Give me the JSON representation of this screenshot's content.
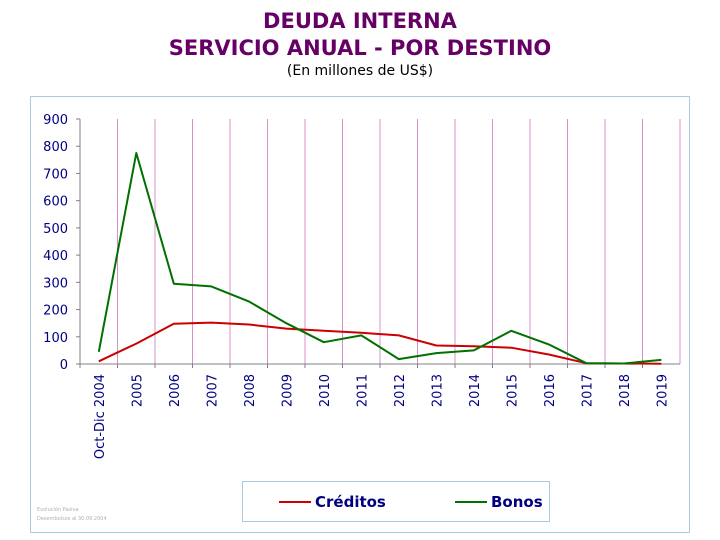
{
  "title_line1": "DEUDA INTERNA",
  "title_line2": "SERVICIO ANUAL - POR DESTINO",
  "subtitle": "(En millones de US$)",
  "colors": {
    "title": "#660066",
    "creditos": "#cc0000",
    "bonos": "#007000",
    "axis_text": "#000080",
    "vgrid": "#d890c8",
    "frame": "#a9cbe0"
  },
  "chart_data": {
    "type": "line",
    "categories": [
      "Oct-Dic 2004",
      "2005",
      "2006",
      "2007",
      "2008",
      "2009",
      "2010",
      "2011",
      "2012",
      "2013",
      "2014",
      "2015",
      "2016",
      "2017",
      "2018",
      "2019"
    ],
    "series": [
      {
        "name": "Créditos",
        "values": [
          10,
          75,
          148,
          152,
          145,
          130,
          122,
          115,
          105,
          68,
          65,
          60,
          35,
          3,
          2,
          1
        ]
      },
      {
        "name": "Bonos",
        "values": [
          45,
          775,
          295,
          285,
          230,
          150,
          80,
          105,
          18,
          40,
          50,
          122,
          72,
          3,
          2,
          15
        ]
      }
    ],
    "ylim": [
      0,
      900
    ],
    "yticks": [
      0,
      100,
      200,
      300,
      400,
      500,
      600,
      700,
      800,
      900
    ],
    "grid": "vertical",
    "legend": "bottom"
  },
  "footnote_line1": "Evolución Pasiva",
  "footnote_line2": "Desembolsos al 30.09.2004"
}
